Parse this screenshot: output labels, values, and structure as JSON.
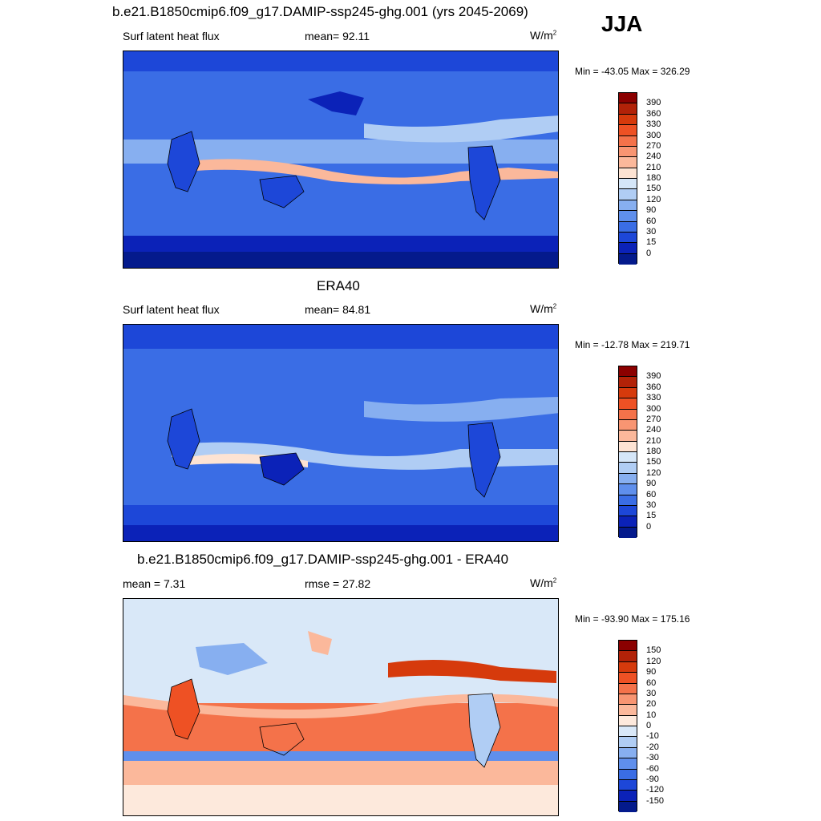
{
  "season": "JJA",
  "panels": [
    {
      "title": "b.e21.B1850cmip6.f09_g17.DAMIP-ssp245-ghg.001 (yrs 2045-2069)",
      "left_label": "Surf latent heat flux",
      "mean_label": "mean=  92.11",
      "units": "W/m",
      "units_sup": "2",
      "minmax": "Min = -43.05 Max = 326.29"
    },
    {
      "title": "ERA40",
      "left_label": "Surf latent heat flux",
      "mean_label": "mean=  84.81",
      "units": "W/m",
      "units_sup": "2",
      "minmax": "Min = -12.78 Max = 219.71"
    },
    {
      "title": "b.e21.B1850cmip6.f09_g17.DAMIP-ssp245-ghg.001 - ERA40",
      "left_label": "mean =   7.31",
      "mean_label": "rmse =  27.82",
      "units": "W/m",
      "units_sup": "2",
      "minmax": "Min = -93.90 Max = 175.16"
    }
  ],
  "chart_data": [
    {
      "type": "heatmap",
      "title": "b.e21.B1850cmip6.f09_g17.DAMIP-ssp245-ghg.001 (yrs 2045-2069)",
      "variable": "Surf latent heat flux",
      "units": "W/m2",
      "mean": 92.11,
      "min": -43.05,
      "max": 326.29,
      "colorbar_levels": [
        390,
        360,
        330,
        300,
        270,
        240,
        210,
        180,
        150,
        120,
        90,
        60,
        30,
        15,
        0
      ],
      "colorbar_colors": [
        "#8b0000",
        "#b22208",
        "#d63a0c",
        "#ee5124",
        "#f4724a",
        "#f89572",
        "#fbb89b",
        "#fde3d3",
        "#d5e6f8",
        "#b0cdf4",
        "#87aff0",
        "#5f8fec",
        "#3a6de5",
        "#1d47d8",
        "#0b22b8",
        "#041a8c"
      ]
    },
    {
      "type": "heatmap",
      "title": "ERA40",
      "variable": "Surf latent heat flux",
      "units": "W/m2",
      "mean": 84.81,
      "min": -12.78,
      "max": 219.71,
      "colorbar_levels": [
        390,
        360,
        330,
        300,
        270,
        240,
        210,
        180,
        150,
        120,
        90,
        60,
        30,
        15,
        0
      ],
      "colorbar_colors": [
        "#8b0000",
        "#b22208",
        "#d63a0c",
        "#ee5124",
        "#f4724a",
        "#f89572",
        "#fbb89b",
        "#fde3d3",
        "#d5e6f8",
        "#b0cdf4",
        "#87aff0",
        "#5f8fec",
        "#3a6de5",
        "#1d47d8",
        "#0b22b8",
        "#041a8c"
      ]
    },
    {
      "type": "heatmap",
      "title": "b.e21.B1850cmip6.f09_g17.DAMIP-ssp245-ghg.001 - ERA40",
      "variable": "Surf latent heat flux",
      "units": "W/m2",
      "mean": 7.31,
      "rmse": 27.82,
      "min": -93.9,
      "max": 175.16,
      "colorbar_levels": [
        150,
        120,
        90,
        60,
        30,
        20,
        10,
        0,
        -10,
        -20,
        -30,
        -60,
        -90,
        -120,
        -150
      ],
      "colorbar_colors": [
        "#8b0000",
        "#b22208",
        "#d63a0c",
        "#ee5124",
        "#f4724a",
        "#f89572",
        "#fbb89b",
        "#fde9dc",
        "#d9e8f8",
        "#b0cdf4",
        "#87aff0",
        "#5f8fec",
        "#3a6de5",
        "#1d47d8",
        "#0b22b8",
        "#041a8c"
      ]
    }
  ]
}
